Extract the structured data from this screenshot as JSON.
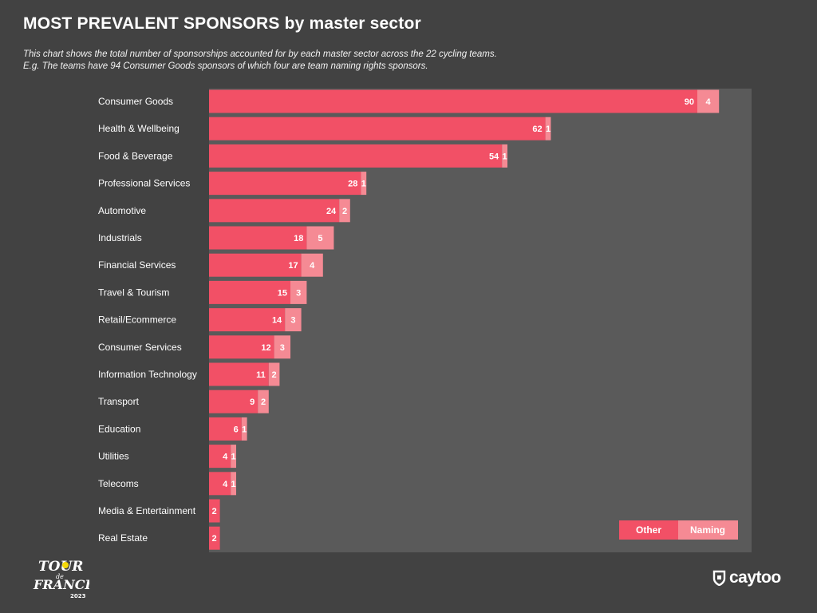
{
  "header": {
    "title": "MOST PREVALENT SPONSORS by master sector",
    "subtitle_line1": "This chart shows the total number of sponsorships accounted for by each master sector across the 22 cycling teams.",
    "subtitle_line2": "E.g. The teams have 94 Consumer Goods sponsors of which four are team naming rights sponsors."
  },
  "colors": {
    "background": "#424242",
    "plot_area": "#5a5a5a",
    "other": "#f25066",
    "naming": "#f58a94"
  },
  "chart_data": {
    "type": "bar",
    "orientation": "horizontal",
    "stacked": true,
    "categories": [
      "Consumer Goods",
      "Health & Wellbeing",
      "Food & Beverage",
      "Professional Services",
      "Automotive",
      "Industrials",
      "Financial Services",
      "Travel & Tourism",
      "Retail/Ecommerce",
      "Consumer Services",
      "Information Technology",
      "Transport",
      "Education",
      "Utilities",
      "Telecoms",
      "Media & Entertainment",
      "Real Estate"
    ],
    "series": [
      {
        "name": "Other",
        "values": [
          90,
          62,
          54,
          28,
          24,
          18,
          17,
          15,
          14,
          12,
          11,
          9,
          6,
          4,
          4,
          2,
          2
        ]
      },
      {
        "name": "Naming",
        "values": [
          4,
          1,
          1,
          1,
          2,
          5,
          4,
          3,
          3,
          3,
          2,
          2,
          1,
          1,
          1,
          0,
          0
        ]
      }
    ],
    "xlim": [
      0,
      96
    ],
    "legend_position": "bottom-right",
    "grid": false
  },
  "logos": {
    "tour_de_france": {
      "line1": "TOUR",
      "line2": "de",
      "line3": "FRANCE",
      "year": "2023"
    },
    "caytoo": "caytoo"
  }
}
